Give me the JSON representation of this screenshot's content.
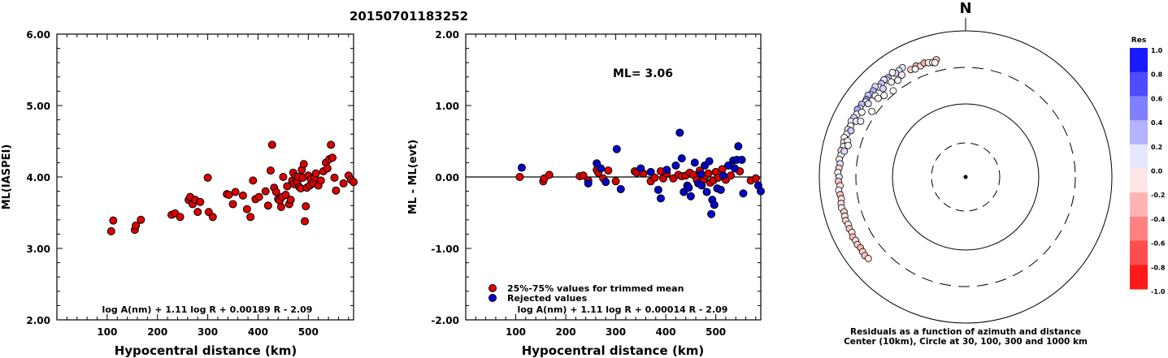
{
  "title": "20150701183252",
  "chart_data": [
    {
      "type": "scatter",
      "ylabel": "ML(IASPEI)",
      "xlabel": "Hypocentral distance (km)",
      "xlim": [
        0,
        590
      ],
      "ylim": [
        2.0,
        6.0
      ],
      "xticks": [
        100,
        200,
        300,
        400,
        500
      ],
      "yticks": [
        2.0,
        3.0,
        4.0,
        5.0,
        6.0
      ],
      "ytick_labels": [
        "2.00",
        "3.00",
        "4.00",
        "5.00",
        "6.00"
      ],
      "formula": "log A(nm) + 1.11 log R + 0.00189 R - 2.09",
      "marker_color": "#dd0000",
      "points": [
        [
          108,
          3.24
        ],
        [
          112,
          3.39
        ],
        [
          155,
          3.26
        ],
        [
          157,
          3.32
        ],
        [
          167,
          3.4
        ],
        [
          228,
          3.47
        ],
        [
          235,
          3.49
        ],
        [
          245,
          3.44
        ],
        [
          262,
          3.68
        ],
        [
          265,
          3.72
        ],
        [
          270,
          3.62
        ],
        [
          275,
          3.68
        ],
        [
          280,
          3.51
        ],
        [
          285,
          3.65
        ],
        [
          300,
          3.99
        ],
        [
          302,
          3.51
        ],
        [
          310,
          3.44
        ],
        [
          338,
          3.76
        ],
        [
          342,
          3.75
        ],
        [
          350,
          3.62
        ],
        [
          355,
          3.79
        ],
        [
          370,
          3.74
        ],
        [
          378,
          3.55
        ],
        [
          385,
          3.44
        ],
        [
          390,
          3.95
        ],
        [
          395,
          3.69
        ],
        [
          402,
          3.72
        ],
        [
          415,
          3.8
        ],
        [
          420,
          3.6
        ],
        [
          425,
          4.09
        ],
        [
          428,
          4.45
        ],
        [
          432,
          3.85
        ],
        [
          436,
          3.79
        ],
        [
          440,
          3.69
        ],
        [
          443,
          3.67
        ],
        [
          446,
          3.58
        ],
        [
          448,
          3.72
        ],
        [
          450,
          4.0
        ],
        [
          455,
          3.75
        ],
        [
          458,
          3.87
        ],
        [
          462,
          3.62
        ],
        [
          465,
          3.68
        ],
        [
          468,
          3.95
        ],
        [
          470,
          4.06
        ],
        [
          472,
          3.9
        ],
        [
          475,
          4.01
        ],
        [
          478,
          3.93
        ],
        [
          480,
          4.0
        ],
        [
          482,
          3.86
        ],
        [
          485,
          3.84
        ],
        [
          487,
          4.1
        ],
        [
          489,
          3.99
        ],
        [
          491,
          4.18
        ],
        [
          493,
          3.38
        ],
        [
          495,
          3.59
        ],
        [
          497,
          3.85
        ],
        [
          500,
          4.02
        ],
        [
          503,
          3.88
        ],
        [
          505,
          3.97
        ],
        [
          510,
          3.91
        ],
        [
          513,
          3.99
        ],
        [
          515,
          4.05
        ],
        [
          520,
          3.88
        ],
        [
          525,
          3.95
        ],
        [
          530,
          4.08
        ],
        [
          535,
          4.2
        ],
        [
          538,
          4.12
        ],
        [
          542,
          4.25
        ],
        [
          545,
          4.45
        ],
        [
          548,
          4.27
        ],
        [
          552,
          3.99
        ],
        [
          555,
          3.81
        ],
        [
          570,
          3.91
        ],
        [
          580,
          4.02
        ],
        [
          585,
          3.96
        ],
        [
          590,
          3.93
        ]
      ]
    },
    {
      "type": "scatter",
      "ylabel": "ML - ML(evt)",
      "xlabel": "Hypocentral distance (km)",
      "xlim": [
        0,
        590
      ],
      "ylim": [
        -2.0,
        2.0
      ],
      "xticks": [
        100,
        200,
        300,
        400,
        500
      ],
      "yticks": [
        -2.0,
        -1.0,
        0.0,
        1.0,
        2.0
      ],
      "ytick_labels": [
        "-2.00",
        "-1.00",
        "0.00",
        "1.00",
        "2.00"
      ],
      "annotation": "ML= 3.06",
      "formula": "log A(nm) + 1.11 log R + 0.00014 R - 2.09",
      "legend": [
        {
          "label": "25%-75% values for trimmed mean",
          "color": "#dd0000"
        },
        {
          "label": "Rejected values",
          "color": "#0000cc"
        }
      ],
      "trimmed": [
        [
          108,
          0.0
        ],
        [
          155,
          -0.06
        ],
        [
          157,
          -0.02
        ],
        [
          167,
          0.03
        ],
        [
          228,
          0.01
        ],
        [
          235,
          0.02
        ],
        [
          245,
          -0.05
        ],
        [
          262,
          0.1
        ],
        [
          265,
          0.06
        ],
        [
          275,
          -0.02
        ],
        [
          285,
          0.09
        ],
        [
          300,
          -0.06
        ],
        [
          338,
          0.08
        ],
        [
          342,
          0.06
        ],
        [
          355,
          0.05
        ],
        [
          370,
          -0.06
        ],
        [
          378,
          -0.01
        ],
        [
          390,
          0.08
        ],
        [
          395,
          -0.02
        ],
        [
          402,
          0.05
        ],
        [
          415,
          -0.02
        ],
        [
          425,
          0.03
        ],
        [
          432,
          0.01
        ],
        [
          440,
          0.02
        ],
        [
          448,
          0.06
        ],
        [
          455,
          0.03
        ],
        [
          462,
          -0.04
        ],
        [
          468,
          0.09
        ],
        [
          475,
          -0.04
        ],
        [
          480,
          0.02
        ],
        [
          485,
          0.05
        ],
        [
          489,
          -0.08
        ],
        [
          495,
          -0.05
        ],
        [
          500,
          0.07
        ],
        [
          505,
          -0.01
        ],
        [
          513,
          0.11
        ],
        [
          520,
          -0.04
        ],
        [
          530,
          0.02
        ],
        [
          548,
          0.08
        ],
        [
          570,
          -0.05
        ],
        [
          580,
          -0.02
        ]
      ],
      "rejected": [
        [
          112,
          0.13
        ],
        [
          245,
          -0.09
        ],
        [
          262,
          0.19
        ],
        [
          270,
          0.12
        ],
        [
          280,
          -0.07
        ],
        [
          302,
          0.39
        ],
        [
          310,
          -0.17
        ],
        [
          350,
          0.12
        ],
        [
          370,
          0.07
        ],
        [
          385,
          -0.18
        ],
        [
          390,
          -0.3
        ],
        [
          402,
          0.1
        ],
        [
          420,
          0.16
        ],
        [
          428,
          0.62
        ],
        [
          432,
          0.26
        ],
        [
          436,
          -0.21
        ],
        [
          443,
          -0.12
        ],
        [
          446,
          -0.15
        ],
        [
          450,
          -0.27
        ],
        [
          458,
          0.2
        ],
        [
          465,
          -0.09
        ],
        [
          470,
          0.04
        ],
        [
          472,
          -0.12
        ],
        [
          478,
          0.16
        ],
        [
          482,
          -0.21
        ],
        [
          487,
          0.22
        ],
        [
          491,
          -0.52
        ],
        [
          493,
          -0.32
        ],
        [
          497,
          -0.39
        ],
        [
          503,
          -0.16
        ],
        [
          510,
          -0.18
        ],
        [
          515,
          0.02
        ],
        [
          525,
          0.16
        ],
        [
          535,
          0.23
        ],
        [
          538,
          0.12
        ],
        [
          542,
          0.24
        ],
        [
          545,
          0.43
        ],
        [
          552,
          0.24
        ],
        [
          555,
          -0.23
        ],
        [
          585,
          -0.12
        ],
        [
          590,
          -0.2
        ]
      ]
    },
    {
      "type": "scatter",
      "subtype": "polar",
      "north_label": "N",
      "caption_line1": "Residuals as a function of azimuth and distance",
      "caption_line2": "Center (10km), Circle at 30, 100, 300 and 1000 km",
      "rings": [
        {
          "radius_km": 30,
          "style": "dashed"
        },
        {
          "radius_km": 100,
          "style": "solid"
        },
        {
          "radius_km": 300,
          "style": "dashed"
        },
        {
          "radius_km": 1000,
          "style": "solid"
        }
      ],
      "colorbar_title": "Res",
      "colorbar_ticks": [
        "1.0",
        "0.8",
        "0.6",
        "0.4",
        "0.2",
        "0.0",
        "-0.2",
        "-0.4",
        "-0.6",
        "-0.8",
        "-1.0"
      ],
      "color_positive": "#0000ff",
      "color_negative": "#ff0000",
      "stations": [
        {
          "az": 330,
          "dist": 520,
          "res": 0.1
        },
        {
          "az": 328,
          "dist": 508,
          "res": 0.12
        },
        {
          "az": 326,
          "dist": 500,
          "res": 0.14
        },
        {
          "az": 325,
          "dist": 540,
          "res": 0.05
        },
        {
          "az": 322,
          "dist": 515,
          "res": 0.2
        },
        {
          "az": 321,
          "dist": 495,
          "res": 0.08
        },
        {
          "az": 320,
          "dist": 530,
          "res": 0.11
        },
        {
          "az": 318,
          "dist": 510,
          "res": 0.25
        },
        {
          "az": 316,
          "dist": 498,
          "res": 0.0
        },
        {
          "az": 315,
          "dist": 545,
          "res": 0.15
        },
        {
          "az": 313,
          "dist": 520,
          "res": 0.3
        },
        {
          "az": 311,
          "dist": 505,
          "res": 0.18
        },
        {
          "az": 310,
          "dist": 535,
          "res": 0.22
        },
        {
          "az": 308,
          "dist": 512,
          "res": 0.4
        },
        {
          "az": 307,
          "dist": 495,
          "res": 0.05
        },
        {
          "az": 305,
          "dist": 528,
          "res": 0.26
        },
        {
          "az": 303,
          "dist": 515,
          "res": 0.12
        },
        {
          "az": 302,
          "dist": 540,
          "res": 0.33
        },
        {
          "az": 300,
          "dist": 505,
          "res": 0.02
        },
        {
          "az": 298,
          "dist": 522,
          "res": 0.2
        },
        {
          "az": 296,
          "dist": 535,
          "res": 0.1
        },
        {
          "az": 294,
          "dist": 510,
          "res": -0.05
        },
        {
          "az": 292,
          "dist": 530,
          "res": 0.08
        },
        {
          "az": 290,
          "dist": 518,
          "res": -0.1
        },
        {
          "az": 288,
          "dist": 540,
          "res": 0.0
        },
        {
          "az": 286,
          "dist": 525,
          "res": -0.15
        },
        {
          "az": 284,
          "dist": 510,
          "res": 0.05
        },
        {
          "az": 282,
          "dist": 535,
          "res": -0.2
        },
        {
          "az": 280,
          "dist": 520,
          "res": 0.02
        },
        {
          "az": 278,
          "dist": 540,
          "res": -0.08
        },
        {
          "az": 276,
          "dist": 515,
          "res": 0.12
        },
        {
          "az": 274,
          "dist": 530,
          "res": -0.18
        },
        {
          "az": 272,
          "dist": 545,
          "res": -0.05
        },
        {
          "az": 270,
          "dist": 522,
          "res": 0.1
        },
        {
          "az": 268,
          "dist": 535,
          "res": -0.22
        },
        {
          "az": 266,
          "dist": 510,
          "res": -0.12
        },
        {
          "az": 264,
          "dist": 540,
          "res": 0.0
        },
        {
          "az": 262,
          "dist": 525,
          "res": -0.25
        },
        {
          "az": 260,
          "dist": 515,
          "res": -0.08
        },
        {
          "az": 258,
          "dist": 535,
          "res": -0.15
        },
        {
          "az": 256,
          "dist": 545,
          "res": -0.05
        },
        {
          "az": 254,
          "dist": 520,
          "res": -0.2
        },
        {
          "az": 252,
          "dist": 530,
          "res": -0.1
        },
        {
          "az": 250,
          "dist": 540,
          "res": -0.18
        },
        {
          "az": 248,
          "dist": 525,
          "res": -0.05
        },
        {
          "az": 246,
          "dist": 535,
          "res": -0.22
        },
        {
          "az": 244,
          "dist": 520,
          "res": -0.12
        },
        {
          "az": 242,
          "dist": 545,
          "res": -0.28
        },
        {
          "az": 240,
          "dist": 530,
          "res": -0.15
        },
        {
          "az": 238,
          "dist": 540,
          "res": -0.2
        },
        {
          "az": 236,
          "dist": 525,
          "res": -0.3
        },
        {
          "az": 234,
          "dist": 535,
          "res": -0.18
        },
        {
          "az": 232,
          "dist": 545,
          "res": -0.25
        },
        {
          "az": 230,
          "dist": 530,
          "res": -0.12
        },
        {
          "az": 282,
          "dist": 480,
          "res": 0.15
        },
        {
          "az": 287,
          "dist": 470,
          "res": 0.05
        },
        {
          "az": 292,
          "dist": 475,
          "res": 0.2
        },
        {
          "az": 297,
          "dist": 462,
          "res": 0.1
        },
        {
          "az": 302,
          "dist": 455,
          "res": 0.0
        },
        {
          "az": 307,
          "dist": 448,
          "res": 0.12
        },
        {
          "az": 312,
          "dist": 442,
          "res": 0.05
        },
        {
          "az": 317,
          "dist": 435,
          "res": 0.18
        },
        {
          "az": 322,
          "dist": 430,
          "res": 0.0
        },
        {
          "az": 328,
          "dist": 425,
          "res": -0.05
        },
        {
          "az": 333,
          "dist": 430,
          "res": -0.2
        },
        {
          "az": 336,
          "dist": 445,
          "res": -0.3
        },
        {
          "az": 338,
          "dist": 420,
          "res": -0.15
        },
        {
          "az": 340,
          "dist": 440,
          "res": -0.35
        },
        {
          "az": 342,
          "dist": 425,
          "res": -0.1
        },
        {
          "az": 344,
          "dist": 410,
          "res": 0.0
        },
        {
          "az": 346,
          "dist": 435,
          "res": -0.25
        },
        {
          "az": 335,
          "dist": 410,
          "res": 0.05
        },
        {
          "az": 345,
          "dist": 400,
          "res": -0.05
        },
        {
          "az": 325,
          "dist": 395,
          "res": 0.0
        },
        {
          "az": 312,
          "dist": 390,
          "res": -0.05
        },
        {
          "az": 298,
          "dist": 405,
          "res": 0.08
        },
        {
          "az": 285,
          "dist": 445,
          "res": 0.0
        },
        {
          "az": 315,
          "dist": 360,
          "res": 0.0
        },
        {
          "az": 320,
          "dist": 330,
          "res": 0.0
        },
        {
          "az": 305,
          "dist": 350,
          "res": 0.0
        }
      ]
    }
  ]
}
